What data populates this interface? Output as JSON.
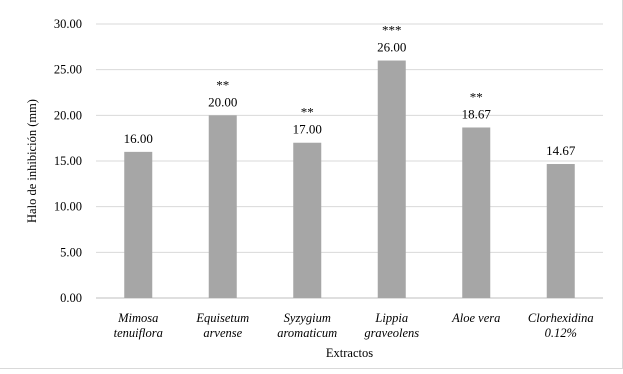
{
  "chart_data": {
    "type": "bar",
    "xlabel": "Extractos",
    "ylabel": "Halo de inhibición (mm)",
    "ylim": [
      0,
      30
    ],
    "y_ticks": [
      "0.00",
      "5.00",
      "10.00",
      "15.00",
      "20.00",
      "25.00",
      "30.00"
    ],
    "grid": true,
    "legend": "none",
    "bar_color": "#a6a6a6",
    "categories": [
      [
        "Mimosa",
        "tenuiflora"
      ],
      [
        "Equisetum",
        "arvense"
      ],
      [
        "Syzygium",
        "aromaticum"
      ],
      [
        "Lippia",
        "graveolens"
      ],
      [
        "Aloe vera"
      ],
      [
        "Clorhexidina",
        "0.12%"
      ]
    ],
    "values": [
      16.0,
      20.0,
      17.0,
      26.0,
      18.67,
      14.67
    ],
    "value_labels": [
      "16.00",
      "20.00",
      "17.00",
      "26.00",
      "18.67",
      "14.67"
    ],
    "significance": [
      "",
      "**",
      "**",
      "***",
      "**",
      ""
    ]
  }
}
